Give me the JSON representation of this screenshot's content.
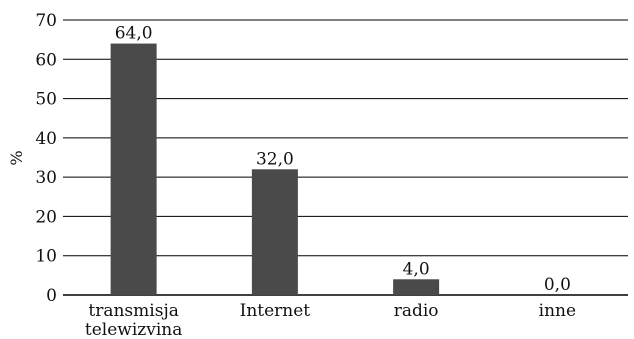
{
  "chart_data": {
    "type": "bar",
    "title": "",
    "xlabel": "",
    "ylabel": "%",
    "categories": [
      [
        "transmisja",
        "telewizvina"
      ],
      [
        "Internet"
      ],
      [
        "radio"
      ],
      [
        "inne"
      ]
    ],
    "values": [
      64.0,
      32.0,
      4.0,
      0.0
    ],
    "value_labels": [
      "64,0",
      "32,0",
      "4,0",
      "0,0"
    ],
    "ylim": [
      0,
      70
    ],
    "yticks": [
      0,
      10,
      20,
      30,
      40,
      50,
      60,
      70
    ],
    "grid": true,
    "bar_color": "#4a4a4a",
    "grid_color": "#000000"
  }
}
